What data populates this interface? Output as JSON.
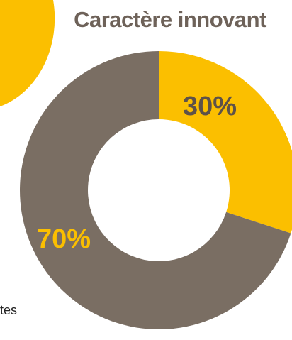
{
  "colors": {
    "accent": "#fbbf00",
    "dark": "#7a6e63",
    "title": "#6e6259",
    "label_on_accent": "#5e5249",
    "background": "#ffffff"
  },
  "decor": {
    "partial_text": "tes"
  },
  "chart_data": {
    "type": "pie",
    "title": "Caractère innovant",
    "categories": [
      "",
      ""
    ],
    "values": [
      30,
      70
    ],
    "labels": [
      "30%",
      "70%"
    ],
    "series_colors": [
      "#fbbf00",
      "#7a6e63"
    ],
    "label_colors": [
      "#5e5249",
      "#fbbf00"
    ],
    "donut": true
  }
}
